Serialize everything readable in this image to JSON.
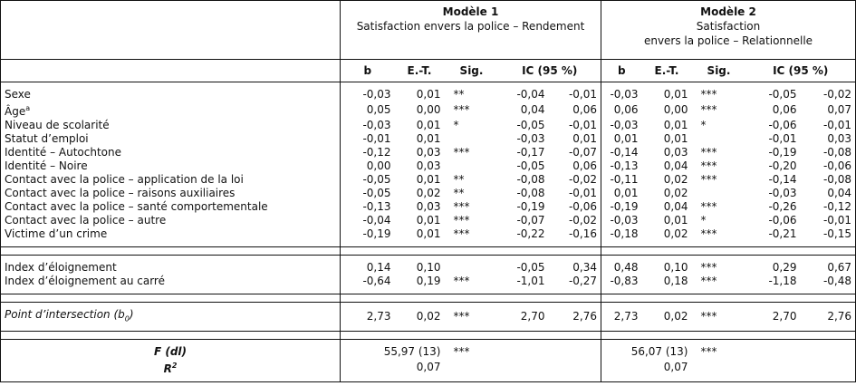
{
  "models": [
    {
      "title": "Modèle 1",
      "subtitle_lines": [
        "Satisfaction envers la police – Rendement"
      ]
    },
    {
      "title": "Modèle 2",
      "subtitle_lines": [
        "Satisfaction",
        "envers la police – Relationnelle"
      ]
    }
  ],
  "columns": {
    "b": "b",
    "se": "E.-T.",
    "sig": "Sig.",
    "ci": "IC (95 %)"
  },
  "rows_main": [
    {
      "label": "Sexe",
      "m1": [
        "-0,03",
        "0,01",
        "**",
        "-0,04",
        "-0,01"
      ],
      "m2": [
        "-0,03",
        "0,01",
        "***",
        "-0,05",
        "-0,02"
      ]
    },
    {
      "label": "Âge",
      "sup": "a",
      "m1": [
        "0,05",
        "0,00",
        "***",
        "0,04",
        "0,06"
      ],
      "m2": [
        "0,06",
        "0,00",
        "***",
        "0,06",
        "0,07"
      ]
    },
    {
      "label": "Niveau de scolarité",
      "m1": [
        "-0,03",
        "0,01",
        "*",
        "-0,05",
        "-0,01"
      ],
      "m2": [
        "-0,03",
        "0,01",
        "*",
        "-0,06",
        "-0,01"
      ]
    },
    {
      "label": "Statut d’emploi",
      "m1": [
        "-0,01",
        "0,01",
        "",
        "-0,03",
        "0,01"
      ],
      "m2": [
        "0,01",
        "0,01",
        "",
        "-0,01",
        "0,03"
      ]
    },
    {
      "label": "Identité – Autochtone",
      "m1": [
        "-0,12",
        "0,03",
        "***",
        "-0,17",
        "-0,07"
      ],
      "m2": [
        "-0,14",
        "0,03",
        "***",
        "-0,19",
        "-0,08"
      ]
    },
    {
      "label": "Identité – Noire",
      "m1": [
        "0,00",
        "0,03",
        "",
        "-0,05",
        "0,06"
      ],
      "m2": [
        "-0,13",
        "0,04",
        "***",
        "-0,20",
        "-0,06"
      ]
    },
    {
      "label": "Contact avec la police – application de la loi",
      "m1": [
        "-0,05",
        "0,01",
        "**",
        "-0,08",
        "-0,02"
      ],
      "m2": [
        "-0,11",
        "0,02",
        "***",
        "-0,14",
        "-0,08"
      ]
    },
    {
      "label": "Contact avec la police – raisons auxiliaires",
      "m1": [
        "-0,05",
        "0,02",
        "**",
        "-0,08",
        "-0,01"
      ],
      "m2": [
        "0,01",
        "0,02",
        "",
        "-0,03",
        "0,04"
      ]
    },
    {
      "label": "Contact avec la police – santé comportementale",
      "m1": [
        "-0,13",
        "0,03",
        "***",
        "-0,19",
        "-0,06"
      ],
      "m2": [
        "-0,19",
        "0,04",
        "***",
        "-0,26",
        "-0,12"
      ]
    },
    {
      "label": "Contact avec la police – autre",
      "m1": [
        "-0,04",
        "0,01",
        "***",
        "-0,07",
        "-0,02"
      ],
      "m2": [
        "-0,03",
        "0,01",
        "*",
        "-0,06",
        "-0,01"
      ]
    },
    {
      "label": "Victime d’un crime",
      "m1": [
        "-0,19",
        "0,01",
        "***",
        "-0,22",
        "-0,16"
      ],
      "m2": [
        "-0,18",
        "0,02",
        "***",
        "-0,21",
        "-0,15"
      ]
    }
  ],
  "rows_index": [
    {
      "label": "Index d’éloignement",
      "m1": [
        "0,14",
        "0,10",
        "",
        "-0,05",
        "0,34"
      ],
      "m2": [
        "0,48",
        "0,10",
        "***",
        "0,29",
        "0,67"
      ]
    },
    {
      "label": "Index d’éloignement au carré",
      "m1": [
        "-0,64",
        "0,19",
        "***",
        "-1,01",
        "-0,27"
      ],
      "m2": [
        "-0,83",
        "0,18",
        "***",
        "-1,18",
        "-0,48"
      ]
    }
  ],
  "intercept": {
    "label": "Point d’intersection (b",
    "sub": "0",
    "label_end": ")",
    "m1": [
      "2,73",
      "0,02",
      "***",
      "2,70",
      "2,76"
    ],
    "m2": [
      "2,73",
      "0,02",
      "***",
      "2,70",
      "2,76"
    ]
  },
  "fit": {
    "f_label": "F (dl)",
    "r2_label": "R",
    "r2_sup": "2",
    "m1": {
      "f": "55,97 (13)",
      "sig": "***",
      "r2": "0,07"
    },
    "m2": {
      "f": "56,07 (13)",
      "sig": "***",
      "r2": "0,07"
    }
  }
}
